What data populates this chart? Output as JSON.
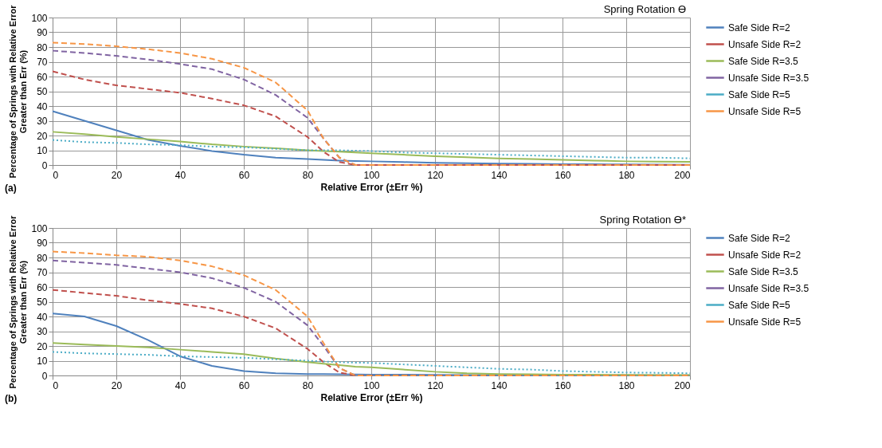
{
  "chart_data": [
    {
      "type": "line",
      "title": "Spring Rotation ϴ",
      "xlabel": "Relative Error (±Err %)",
      "ylabel": "Percentage of Springs with Relative Error\nGreater than Err (%)",
      "annotations": [
        "(a)"
      ],
      "x": [
        0,
        10,
        20,
        30,
        40,
        50,
        60,
        70,
        80,
        85,
        90,
        95,
        100,
        110,
        120,
        130,
        140,
        150,
        160,
        170,
        180,
        190,
        200
      ],
      "xlim": [
        0,
        200
      ],
      "xticks": [
        0,
        20,
        40,
        60,
        80,
        100,
        120,
        140,
        160,
        180,
        200
      ],
      "ylim": [
        0,
        100
      ],
      "yticks": [
        0,
        10,
        20,
        30,
        40,
        50,
        60,
        70,
        80,
        90,
        100
      ],
      "grid": true,
      "legend": "right",
      "series": [
        {
          "name": "Safe Side R=2",
          "color": "#4f81bd",
          "line_style": "solid",
          "values": [
            36.5,
            30,
            23.5,
            17,
            13,
            9.5,
            7,
            5,
            4,
            3.5,
            3,
            2.7,
            2.5,
            2,
            1.5,
            1.2,
            1,
            0.8,
            0.6,
            0.5,
            0.4,
            0.3,
            0.2
          ]
        },
        {
          "name": "Unsafe Side R=2",
          "color": "#c0504d",
          "line_style": "dashed",
          "values": [
            63.5,
            58,
            54,
            51.5,
            49,
            45,
            40.5,
            33,
            19,
            9,
            2,
            0,
            0,
            0,
            0,
            0,
            0,
            0,
            0,
            0,
            0,
            0,
            0
          ]
        },
        {
          "name": "Safe Side R=3.5",
          "color": "#9bbb59",
          "line_style": "solid",
          "values": [
            22.5,
            21,
            19,
            17.5,
            16,
            14,
            12.5,
            11.3,
            10,
            9.5,
            9,
            8.5,
            8,
            7,
            6,
            5.3,
            4.5,
            4,
            3.5,
            3,
            2.5,
            2.3,
            2.2
          ]
        },
        {
          "name": "Unsafe Side R=3.5",
          "color": "#8064a2",
          "line_style": "dashed",
          "values": [
            77.5,
            76,
            74,
            71.5,
            68.5,
            65,
            58,
            47.5,
            32,
            18,
            5,
            0,
            0,
            0,
            0,
            0,
            0,
            0,
            0,
            0,
            0,
            0,
            0
          ]
        },
        {
          "name": "Safe Side R=5",
          "color": "#4bacc6",
          "line_style": "dotted",
          "values": [
            17,
            15.5,
            15,
            14,
            13.5,
            12.5,
            12,
            11,
            10,
            10,
            10,
            9.7,
            9.5,
            8.5,
            8,
            7.5,
            7,
            6.5,
            6,
            5.5,
            5,
            5,
            4.5
          ]
        },
        {
          "name": "Unsafe Side R=5",
          "color": "#f79646",
          "line_style": "dashed",
          "values": [
            83,
            82,
            80.5,
            78.5,
            76,
            72,
            66,
            56,
            37,
            18,
            5,
            0,
            0,
            0,
            0,
            0,
            0,
            0,
            0,
            0,
            0,
            0,
            0
          ]
        }
      ]
    },
    {
      "type": "line",
      "title": "Spring Rotation ϴ*",
      "xlabel": "Relative Error (±Err %)",
      "ylabel": "Percentage of Springs with Relative Error\nGreater than Err (%)",
      "annotations": [
        "(b)"
      ],
      "x": [
        0,
        10,
        20,
        30,
        40,
        50,
        60,
        70,
        80,
        85,
        90,
        95,
        100,
        110,
        120,
        130,
        140,
        150,
        160,
        170,
        180,
        190,
        200
      ],
      "xlim": [
        0,
        200
      ],
      "xticks": [
        0,
        20,
        40,
        60,
        80,
        100,
        120,
        140,
        160,
        180,
        200
      ],
      "ylim": [
        0,
        100
      ],
      "yticks": [
        0,
        10,
        20,
        30,
        40,
        50,
        60,
        70,
        80,
        90,
        100
      ],
      "grid": true,
      "legend": "right",
      "series": [
        {
          "name": "Safe Side R=2",
          "color": "#4f81bd",
          "line_style": "solid",
          "values": [
            42,
            40,
            33.5,
            24,
            13,
            6.5,
            3,
            1.5,
            1,
            0.9,
            0.8,
            0.7,
            0.6,
            0.5,
            0.4,
            0.3,
            0.3,
            0.2,
            0.2,
            0.2,
            0.1,
            0.1,
            0.1
          ]
        },
        {
          "name": "Unsafe Side R=2",
          "color": "#c0504d",
          "line_style": "dashed",
          "values": [
            58,
            56,
            54,
            51,
            48.5,
            45.5,
            40,
            32,
            18,
            9,
            2,
            0,
            0,
            0,
            0,
            0,
            0,
            0,
            0,
            0,
            0,
            0,
            0
          ]
        },
        {
          "name": "Safe Side R=3.5",
          "color": "#9bbb59",
          "line_style": "solid",
          "values": [
            22,
            21,
            20,
            19,
            17.5,
            16,
            14.5,
            11.5,
            9,
            8,
            7,
            6,
            5.5,
            4,
            2.5,
            1.5,
            1,
            0.8,
            0.6,
            0.5,
            0.4,
            0.3,
            0.3
          ]
        },
        {
          "name": "Unsafe Side R=3.5",
          "color": "#8064a2",
          "line_style": "dashed",
          "values": [
            78,
            76.5,
            75,
            72.5,
            70,
            66,
            59.5,
            50,
            34,
            20,
            5,
            0,
            0,
            0,
            0,
            0,
            0,
            0,
            0,
            0,
            0,
            0,
            0
          ]
        },
        {
          "name": "Safe Side R=5",
          "color": "#4bacc6",
          "line_style": "dotted",
          "values": [
            16,
            15,
            14.5,
            14,
            13,
            12.5,
            12,
            11,
            10,
            9.5,
            9,
            8.7,
            8.5,
            7.5,
            6.5,
            5.5,
            4.5,
            4,
            3,
            2.5,
            2,
            1.8,
            1.5
          ]
        },
        {
          "name": "Unsafe Side R=5",
          "color": "#f79646",
          "line_style": "dashed",
          "values": [
            84,
            83,
            81.5,
            80.5,
            78,
            74,
            68,
            58,
            40,
            22,
            5,
            0,
            0,
            0,
            0,
            0,
            0,
            0,
            0,
            0,
            0,
            0,
            0
          ]
        }
      ]
    }
  ]
}
